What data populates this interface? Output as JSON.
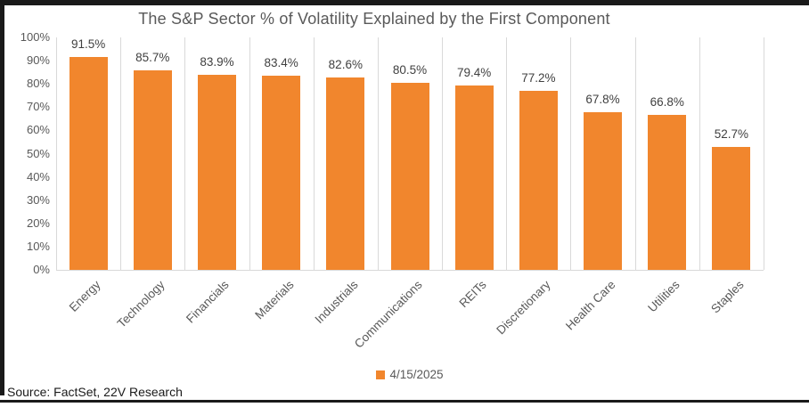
{
  "chart_data": {
    "type": "bar",
    "title": "The S&P Sector % of Volatility Explained by the First Component",
    "categories": [
      "Energy",
      "Technology",
      "Financials",
      "Materials",
      "Industrials",
      "Communications",
      "REITs",
      "Discretionary",
      "Health Care",
      "Utilities",
      "Staples"
    ],
    "values": [
      91.5,
      85.7,
      83.9,
      83.4,
      82.6,
      80.5,
      79.4,
      77.2,
      67.8,
      66.8,
      52.7
    ],
    "data_labels": [
      "91.5%",
      "85.7%",
      "83.9%",
      "83.4%",
      "82.6%",
      "80.5%",
      "79.4%",
      "77.2%",
      "67.8%",
      "66.8%",
      "52.7%"
    ],
    "y_ticks": [
      "100%",
      "90%",
      "80%",
      "70%",
      "60%",
      "50%",
      "40%",
      "30%",
      "20%",
      "10%",
      "0%"
    ],
    "y_tick_values": [
      100,
      90,
      80,
      70,
      60,
      50,
      40,
      30,
      20,
      10,
      0
    ],
    "ylim": [
      0,
      100
    ],
    "xlabel": "",
    "ylabel": "",
    "legend": [
      "4/15/2025"
    ],
    "legend_position": "bottom-center",
    "grid": "vertical-category-gridlines-only",
    "bar_color": "#f1862d",
    "gridline_color": "#d9d9d9",
    "title_color": "#595959",
    "tick_color": "#595959",
    "data_label_color": "#404040"
  },
  "source": {
    "text": "Source: FactSet, 22V Research"
  }
}
